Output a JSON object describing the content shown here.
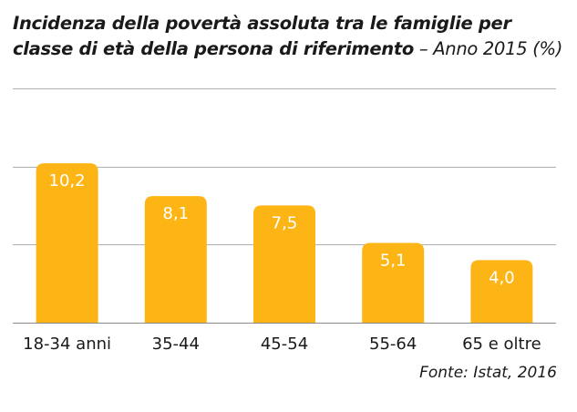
{
  "title": {
    "main": "Incidenza della povertà assoluta tra le famiglie per classe di età della persona di riferimento",
    "suffix": " – Anno 2015 (%)"
  },
  "source": "Fonte: Istat, 2016",
  "colors": {
    "bar": "#FDB515",
    "gridline": "#b0b0b0",
    "bar_label": "#ffffff"
  },
  "chart_data": {
    "type": "bar",
    "title": "Incidenza della povertà assoluta tra le famiglie per classe di età della persona di riferimento – Anno 2015 (%)",
    "categories": [
      "18-34 anni",
      "35-44",
      "45-54",
      "55-64",
      "65 e oltre"
    ],
    "values": [
      10.2,
      8.1,
      7.5,
      5.1,
      4.0
    ],
    "value_labels": [
      "10,2",
      "8,1",
      "7,5",
      "5,1",
      "4,0"
    ],
    "xlabel": "",
    "ylabel": "",
    "ylim": [
      0,
      15
    ],
    "grid": true,
    "gridlines": [
      5,
      10,
      15
    ]
  }
}
